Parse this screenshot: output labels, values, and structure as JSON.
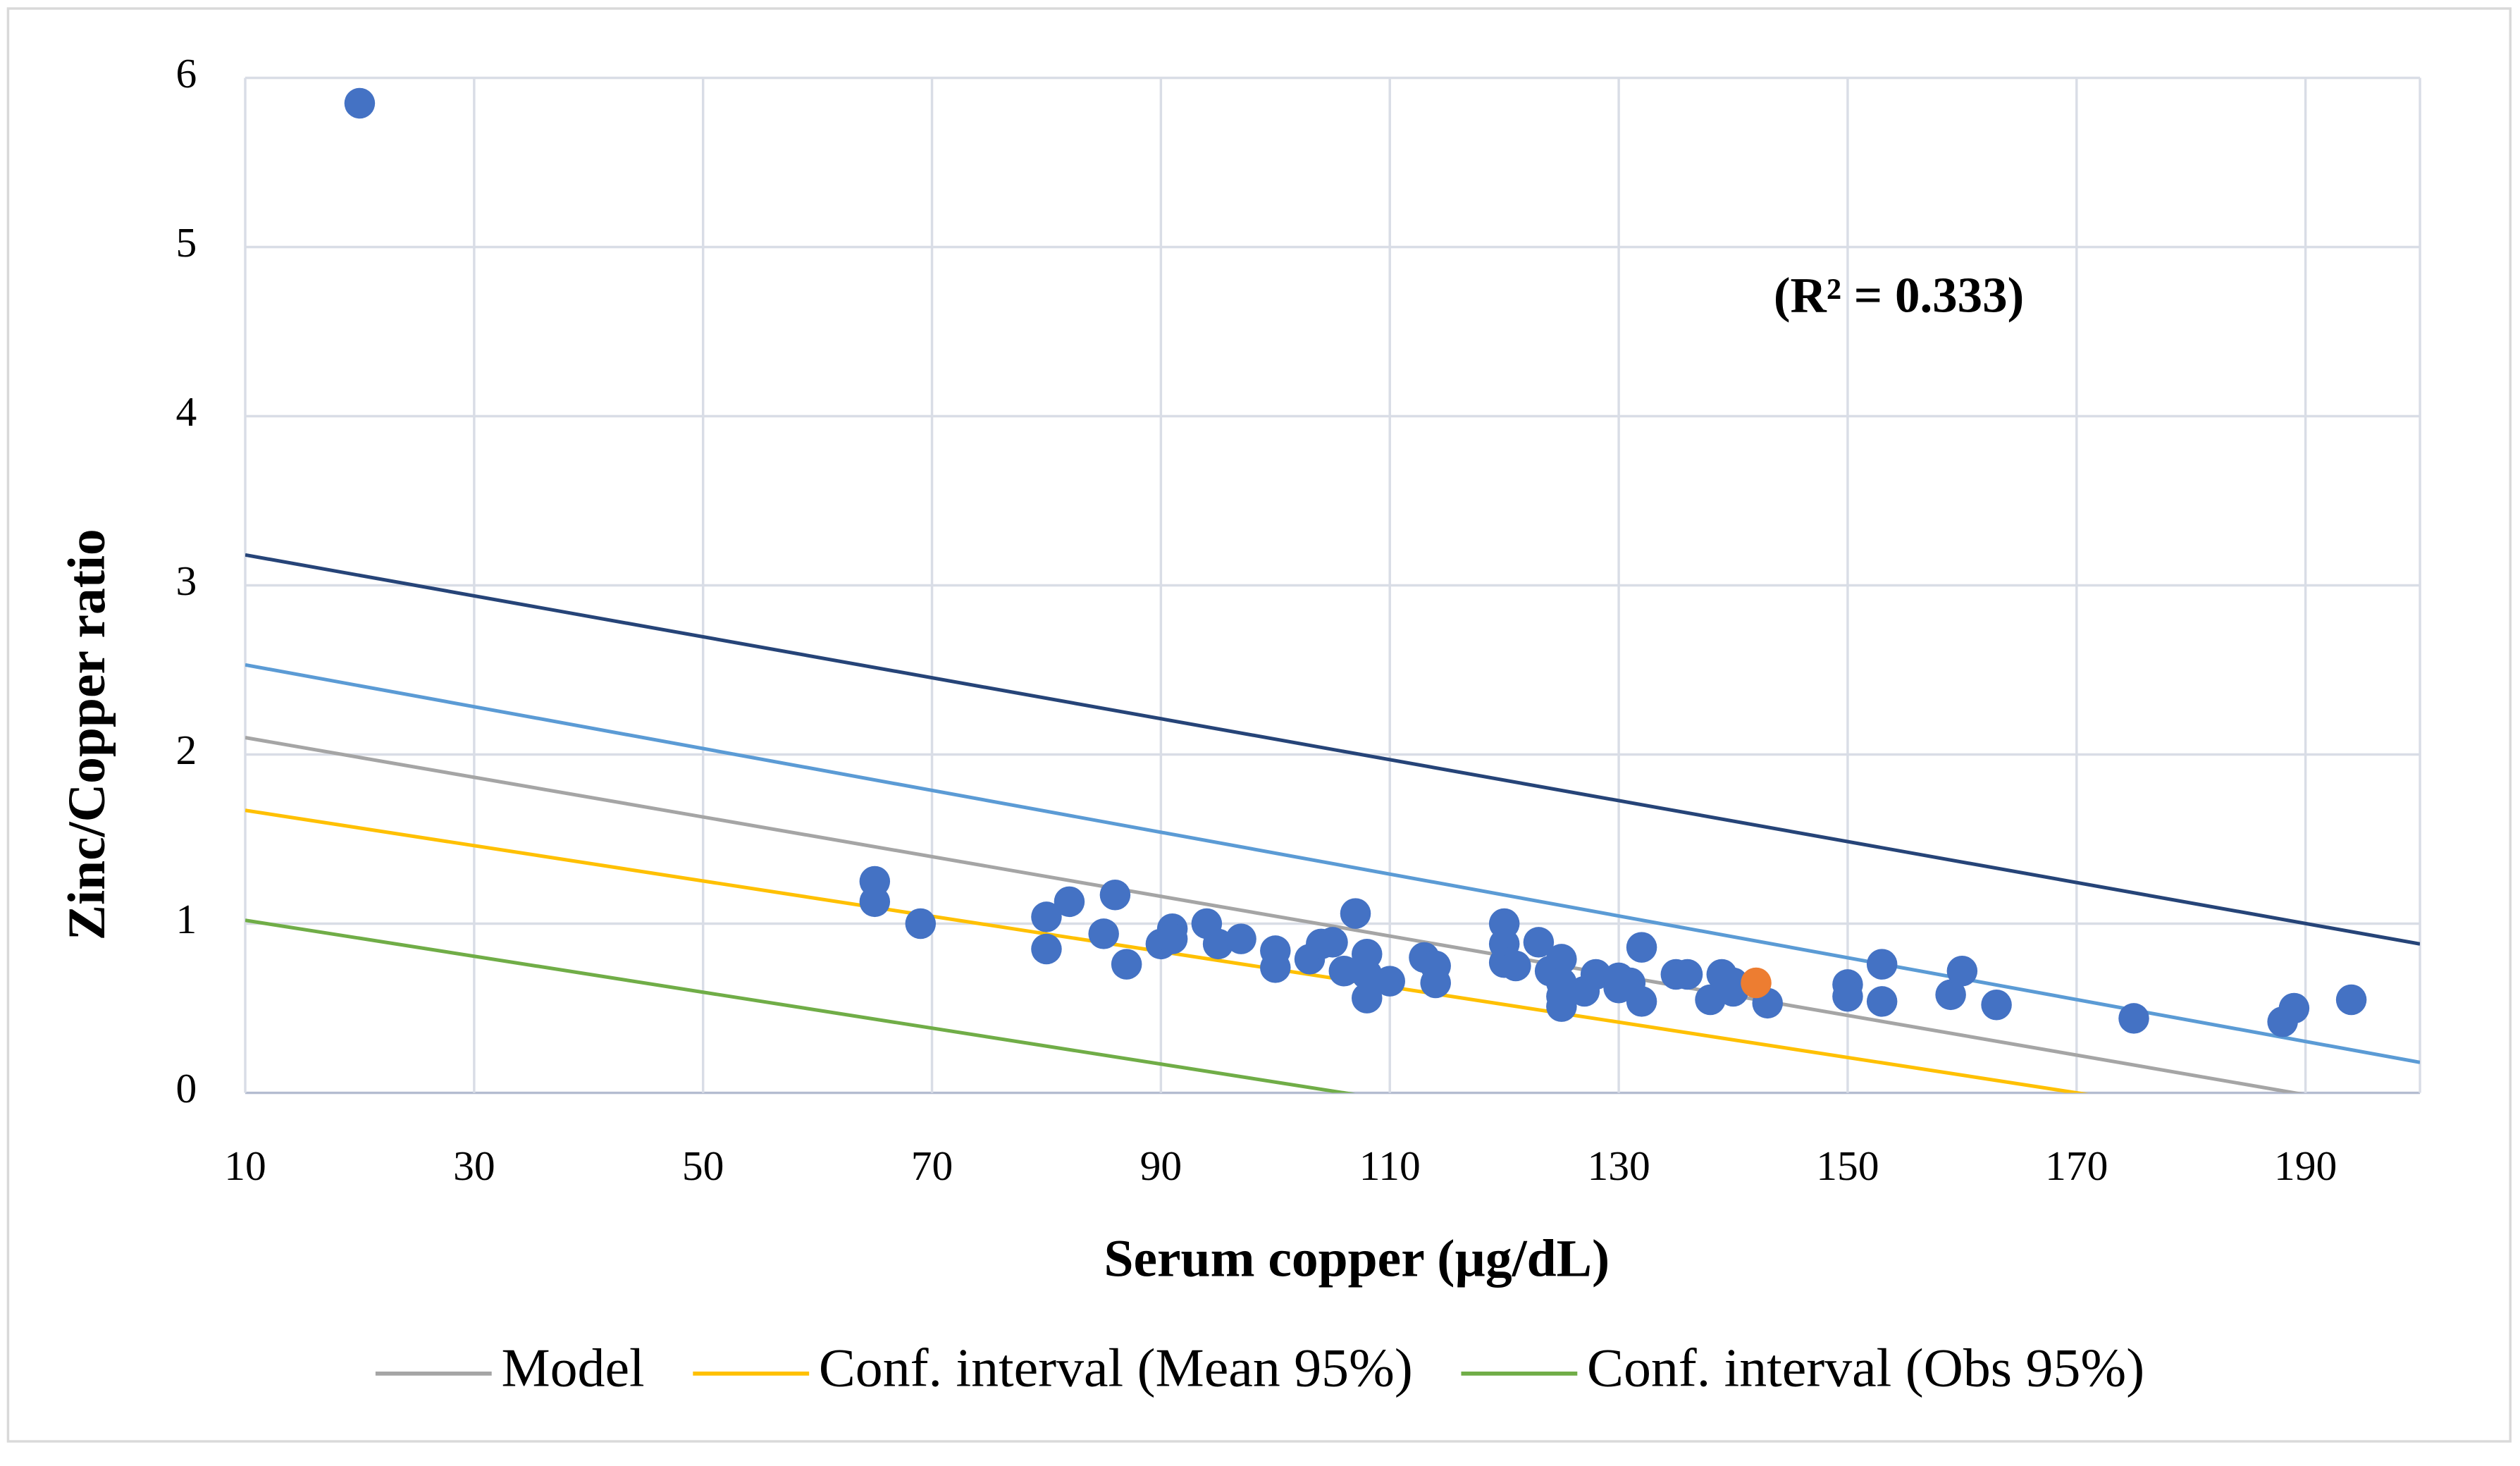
{
  "chart_data": {
    "type": "scatter",
    "annotation": "(R² = 0.333)",
    "x_label": "Serum copper (µg/dL)",
    "y_label": "Zinc/Copper ratio",
    "xlim": [
      10,
      200
    ],
    "ylim": [
      0,
      6
    ],
    "xticks": [
      10,
      30,
      50,
      70,
      90,
      110,
      130,
      150,
      170,
      190
    ],
    "yticks": [
      0,
      1,
      2,
      3,
      4,
      5,
      6
    ],
    "grid": true,
    "legend": "bottom",
    "series": [
      {
        "type": "scatter",
        "color": "#4472c4",
        "x": [
          20,
          65,
          65,
          69,
          80,
          80,
          82,
          85,
          86,
          87,
          90,
          91,
          91,
          94,
          95,
          97,
          100,
          100,
          103,
          104,
          105,
          106,
          107,
          108,
          108,
          108,
          110,
          113,
          114,
          114,
          120,
          120,
          120,
          121,
          123,
          124,
          125,
          125,
          125,
          125,
          127,
          128,
          130,
          130,
          131,
          132,
          132,
          135,
          136,
          138,
          139,
          140,
          140,
          143,
          150,
          150,
          153,
          153,
          159,
          160,
          163,
          175,
          188,
          189,
          194
        ],
        "values": [
          5.85,
          1.25,
          1.13,
          1.0,
          1.04,
          0.85,
          1.13,
          0.94,
          1.17,
          0.76,
          0.88,
          0.97,
          0.91,
          1.0,
          0.88,
          0.91,
          0.84,
          0.74,
          0.79,
          0.88,
          0.89,
          0.72,
          1.06,
          0.82,
          0.7,
          0.56,
          0.66,
          0.8,
          0.75,
          0.65,
          1.0,
          0.88,
          0.77,
          0.75,
          0.89,
          0.72,
          0.79,
          0.65,
          0.51,
          0.57,
          0.6,
          0.7,
          0.62,
          0.68,
          0.65,
          0.86,
          0.54,
          0.7,
          0.7,
          0.55,
          0.7,
          0.6,
          0.65,
          0.53,
          0.64,
          0.57,
          0.76,
          0.54,
          0.58,
          0.72,
          0.52,
          0.44,
          0.42,
          0.5,
          0.55
        ]
      },
      {
        "type": "scatter",
        "color": "#ed7d31",
        "x": [
          142
        ],
        "values": [
          0.65
        ]
      },
      {
        "type": "line",
        "name": "Model",
        "color": "#a5a5a5",
        "x": [
          10,
          200
        ],
        "values": [
          2.1,
          -0.129
        ]
      },
      {
        "type": "line",
        "name": "Conf. interval (Mean 95%)",
        "color": "#ffc000",
        "x": [
          10,
          200
        ],
        "values": [
          1.67,
          -0.313
        ]
      },
      {
        "type": "line",
        "name": "Conf. interval (Obs 95%)",
        "color": "#70ad47",
        "x": [
          10,
          200
        ],
        "values": [
          1.02,
          -0.999
        ]
      },
      {
        "type": "line",
        "color": "#5b9bd5",
        "x": [
          10,
          200
        ],
        "values": [
          2.53,
          0.18
        ]
      },
      {
        "type": "line",
        "color": "#264478",
        "x": [
          10,
          200
        ],
        "values": [
          3.18,
          0.88
        ]
      }
    ]
  }
}
